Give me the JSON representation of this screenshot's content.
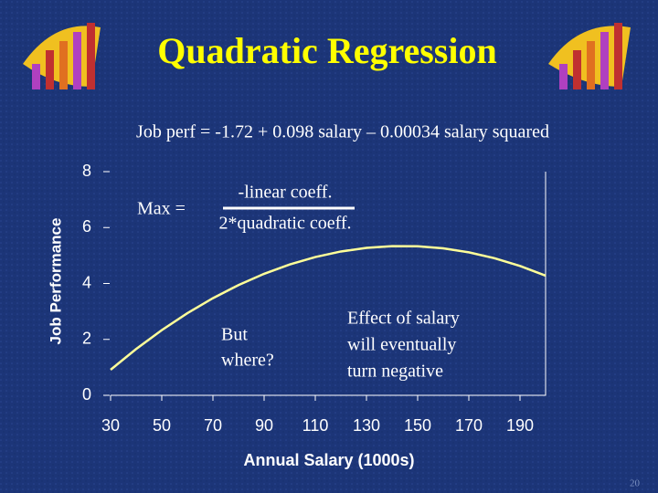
{
  "chart_data": {
    "type": "line",
    "title": "Quadratic Regression",
    "subtitle": "Job perf = -1.72 + 0.098 salary – 0.00034 salary squared",
    "x_label": "Annual Salary (1000s)",
    "y_label": "Job Performance",
    "x": [
      30,
      40,
      50,
      60,
      70,
      80,
      90,
      100,
      110,
      120,
      130,
      140,
      150,
      160,
      170,
      180,
      190,
      200
    ],
    "series": [
      {
        "color": "#ffff99",
        "values": [
          0.914,
          1.656,
          2.33,
          2.936,
          3.474,
          3.944,
          4.346,
          4.68,
          4.946,
          5.144,
          5.274,
          5.336,
          5.33,
          5.256,
          5.114,
          4.904,
          4.626,
          4.28
        ]
      }
    ],
    "xlim": [
      30,
      200
    ],
    "ylim": [
      0,
      8
    ],
    "xticks": [
      30,
      50,
      70,
      90,
      110,
      130,
      150,
      170,
      190
    ],
    "yticks": [
      0,
      2,
      4,
      6,
      8
    ],
    "annotations": {
      "max_label": "Max =",
      "numerator": "-linear coeff.",
      "denominator": "2*quadratic coeff.",
      "question": [
        "But",
        "where?"
      ],
      "effect": [
        "Effect of salary",
        "will eventually",
        "turn negative"
      ]
    },
    "page_number": "20"
  }
}
